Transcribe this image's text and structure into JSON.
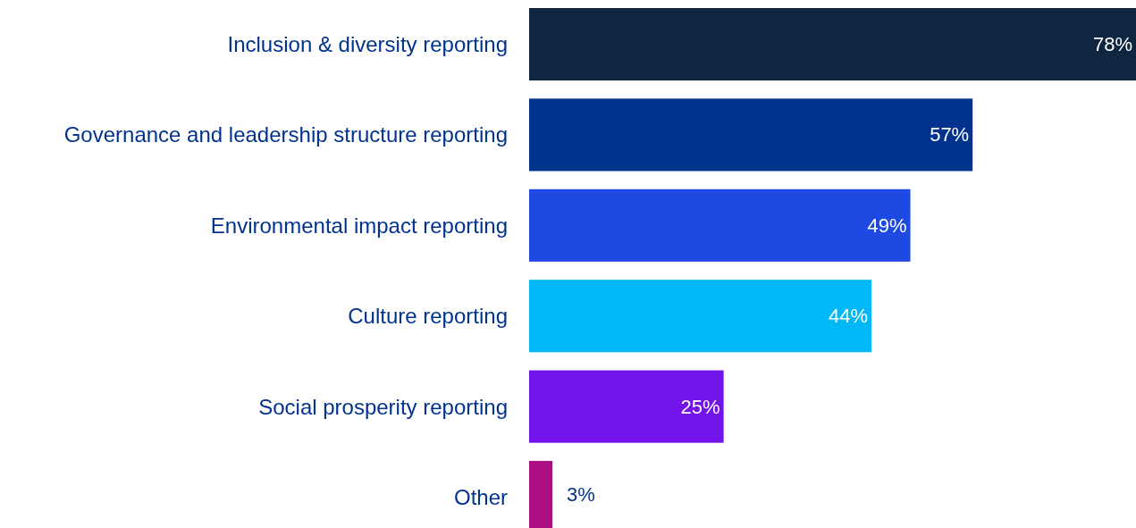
{
  "chart_data": {
    "type": "bar",
    "orientation": "horizontal",
    "categories": [
      "Inclusion & diversity reporting",
      "Governance and leadership structure reporting",
      "Environmental impact reporting",
      "Culture reporting",
      "Social prosperity reporting",
      "Other"
    ],
    "values": [
      78,
      57,
      49,
      44,
      25,
      3
    ],
    "value_labels": [
      "78%",
      "57%",
      "49%",
      "44%",
      "25%",
      "3%"
    ],
    "colors": [
      "#0f2640",
      "#00338d",
      "#1e49e2",
      "#00b8f5",
      "#7213ea",
      "#ab0d82"
    ]
  }
}
